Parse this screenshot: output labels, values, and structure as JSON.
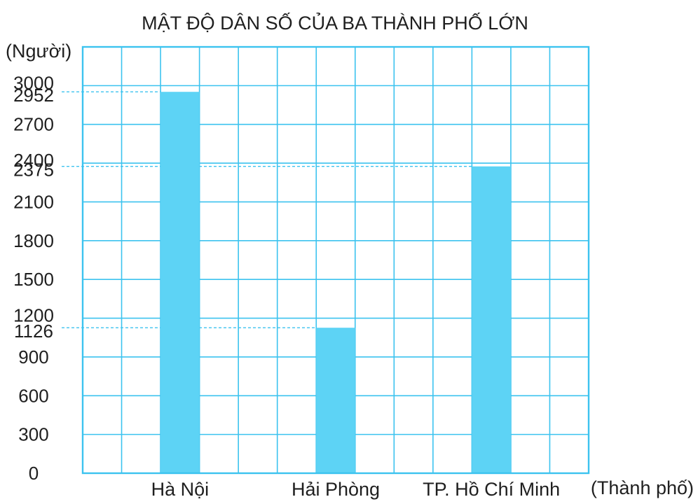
{
  "chart_data": {
    "type": "bar",
    "title": "MẬT ĐỘ DÂN SỐ CỦA BA THÀNH PHỐ LỚN",
    "ylabel": "(Người)",
    "xlabel": "(Thành phố)",
    "categories": [
      "Hà Nội",
      "Hải Phòng",
      "TP. Hồ Chí Minh"
    ],
    "values": [
      2952,
      1126,
      2375
    ],
    "ylim": [
      0,
      3300
    ],
    "yticks": [
      0,
      300,
      600,
      900,
      1200,
      1500,
      1800,
      2100,
      2400,
      2700,
      3000
    ],
    "value_ticks": [
      2952,
      1126,
      2375
    ],
    "grid": true,
    "colors": {
      "bar": "#5dd3f5",
      "grid": "#3cc3ef",
      "axis": "#3cc3ef",
      "guide": "#3cc3ef"
    }
  }
}
